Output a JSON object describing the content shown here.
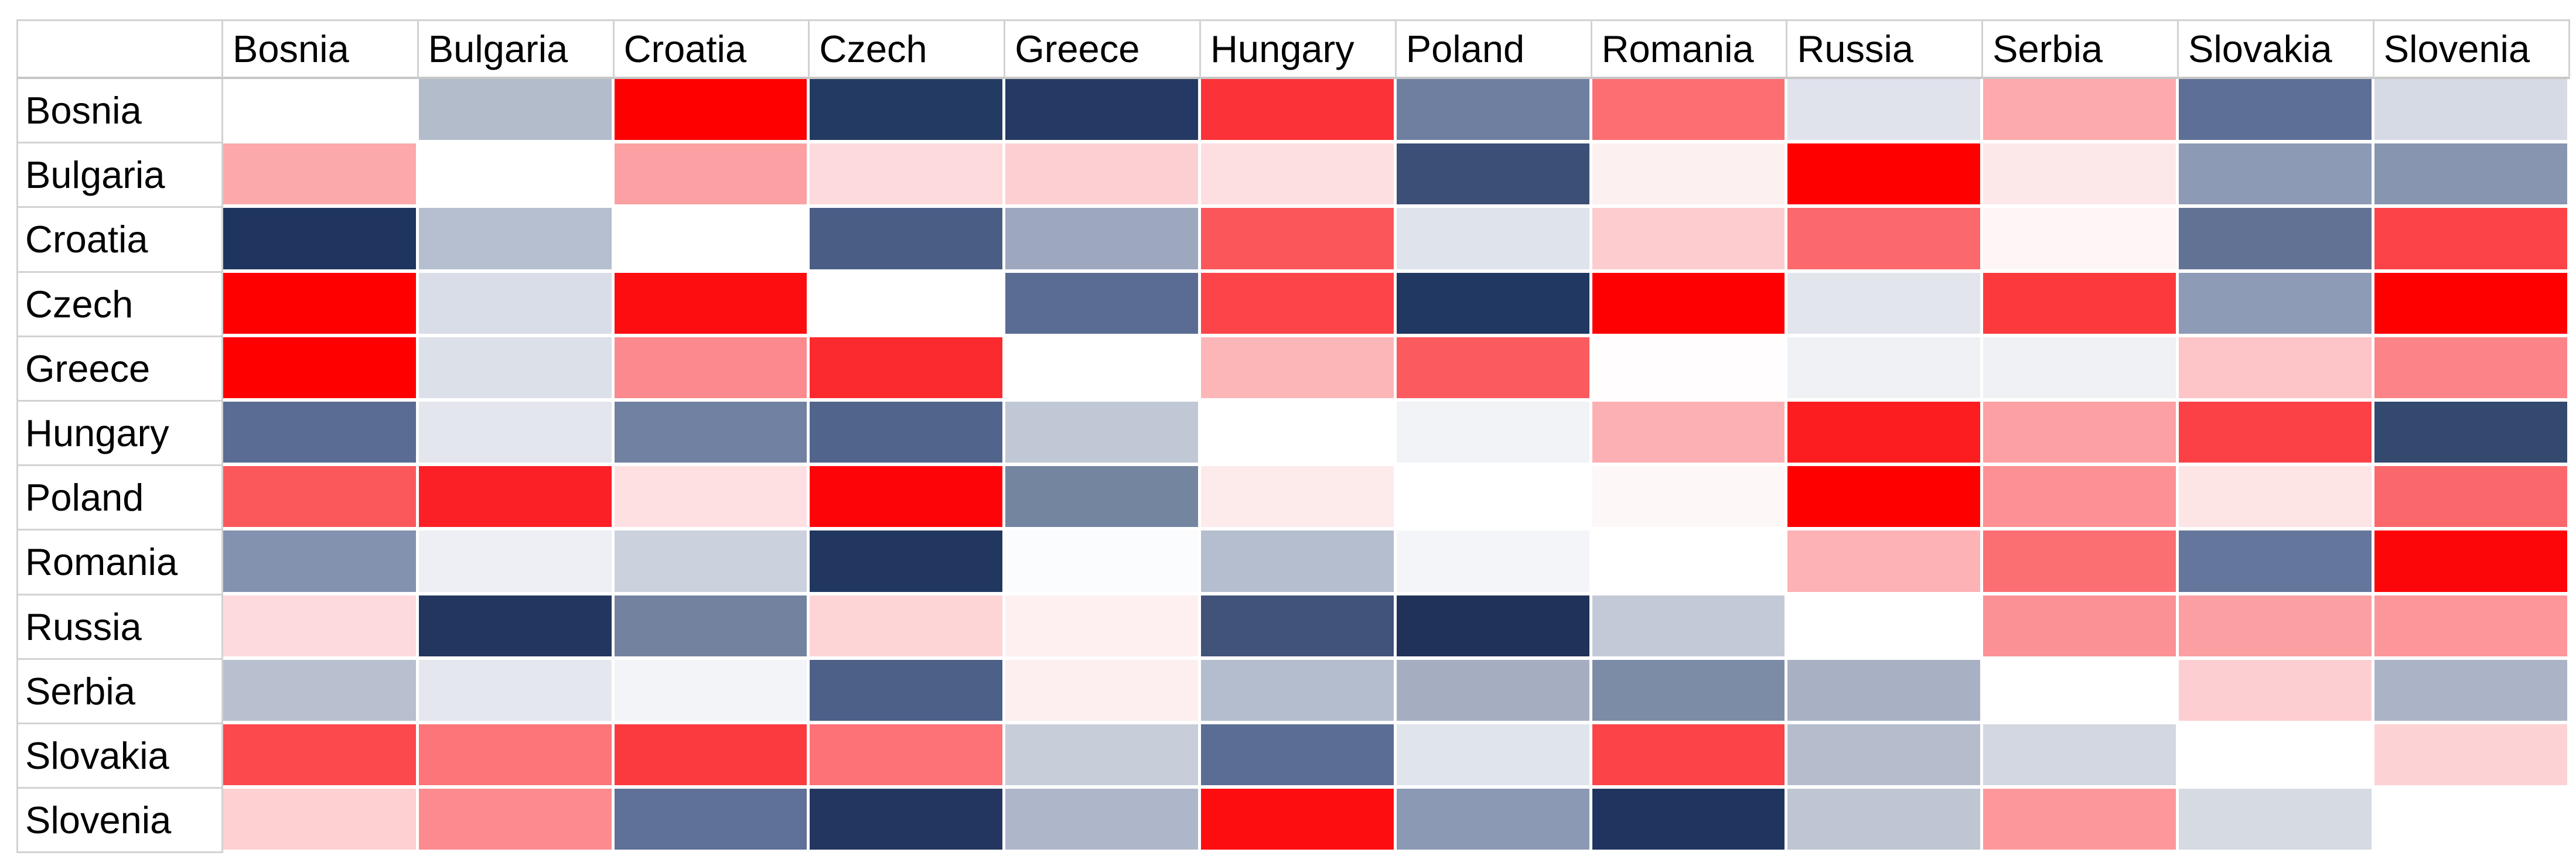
{
  "chart_data": {
    "type": "heatmap",
    "title": "",
    "description": "Country-by-country heatmap matrix (red = high positive, white = neutral, dark navy = low/negative); diagonal cells are blank white",
    "legend_position": "none",
    "grid": "white gridlines between cells",
    "col_labels": [
      "Bosnia",
      "Bulgaria",
      "Croatia",
      "Czech",
      "Greece",
      "Hungary",
      "Poland",
      "Romania",
      "Russia",
      "Serbia",
      "Slovakia",
      "Slovenia"
    ],
    "row_labels": [
      "Bosnia",
      "Bulgaria",
      "Croatia",
      "Czech",
      "Greece",
      "Hungary",
      "Poland",
      "Romania",
      "Russia",
      "Serbia",
      "Slovakia",
      "Slovenia"
    ],
    "color_scale": {
      "low": "#1F3560",
      "mid": "#FFFFFF",
      "high": "#FE0000"
    },
    "colors": [
      [
        "#FFFFFF",
        "#B3BCCB",
        "#FE0000",
        "#233A63",
        "#243A64",
        "#FB3338",
        "#6E7FA0",
        "#FC6E72",
        "#E0E3EC",
        "#FCAAAD",
        "#5D6F96",
        "#D6DAE4"
      ],
      [
        "#FCA9AB",
        "#FFFFFF",
        "#FCA0A3",
        "#FDDADC",
        "#FCCFD2",
        "#FDDFE1",
        "#3C4F77",
        "#FDF0F0",
        "#FE0000",
        "#FDE8E9",
        "#8D9AB5",
        "#8795B1"
      ],
      [
        "#1F3560",
        "#B6BFCF",
        "#FFFFFF",
        "#4A5D85",
        "#9DA8BF",
        "#FB575B",
        "#DFE3EB",
        "#FCCCCF",
        "#FB696D",
        "#FEF6F6",
        "#617295",
        "#FC4348"
      ],
      [
        "#FE0000",
        "#D9DDE7",
        "#FD0D10",
        "#FFFFFF",
        "#5A6C93",
        "#FC4449",
        "#213862",
        "#FE0002",
        "#E2E5EB",
        "#FC3A3E",
        "#8E9BB6",
        "#FE0000"
      ],
      [
        "#FE0000",
        "#DCE0E9",
        "#FC898D",
        "#FB2A2E",
        "#FFFFFF",
        "#FDB6B8",
        "#FB5A5E",
        "#FFFDFD",
        "#EFF1F5",
        "#EFF1F5",
        "#FDC5C7",
        "#FC8488"
      ],
      [
        "#5A6C93",
        "#E3E6ED",
        "#7181A1",
        "#51648B",
        "#C0C8D6",
        "#FFFFFF",
        "#F1F3F7",
        "#FDB0B3",
        "#FB1D20",
        "#FCA0A3",
        "#FC4146",
        "#33496E"
      ],
      [
        "#FB585C",
        "#FB2026",
        "#FEE0E2",
        "#FD0409",
        "#7485A0",
        "#FDEBEC",
        "#FFFFFF",
        "#FEF7F7",
        "#FE0000",
        "#FC9094",
        "#FDE4E5",
        "#FB686C"
      ],
      [
        "#8392AF",
        "#EDEFF4",
        "#CBD2DE",
        "#21375F",
        "#FBFCFD",
        "#B5BECE",
        "#F4F5F9",
        "#FFFFFF",
        "#FDB2B5",
        "#FB6F73",
        "#64769B",
        "#FD060A"
      ],
      [
        "#FDDADC",
        "#22365F",
        "#73839F",
        "#FDD5D7",
        "#FEF0F1",
        "#415379",
        "#203257",
        "#C3CAD7",
        "#FFFFFF",
        "#FC9195",
        "#FC9FA2",
        "#FC969A"
      ],
      [
        "#B8C0D0",
        "#E4E7ED",
        "#F2F4F7",
        "#4D6088",
        "#FDEEEF",
        "#B4BDCD",
        "#A5AEC1",
        "#7D8CA6",
        "#A8B1C4",
        "#FFFFFF",
        "#FDCED1",
        "#ABB4C7"
      ],
      [
        "#FB494E",
        "#FC7579",
        "#FB3A3F",
        "#FC7276",
        "#C7CEDA",
        "#5B6D94",
        "#E0E4EB",
        "#FB4348",
        "#B5BDCD",
        "#D2D7E1",
        "#FFFFFF",
        "#FDD2D4"
      ],
      [
        "#FDD0D2",
        "#FC8A8E",
        "#5F7198",
        "#22365F",
        "#AEB7C9",
        "#FD0D10",
        "#8B99B4",
        "#1F3560",
        "#BEC5D3",
        "#FC989C",
        "#D5DAE3",
        "#FFFFFF"
      ]
    ],
    "estimated_values": [
      [
        null,
        -0.34,
        1.0,
        -0.97,
        -0.97,
        0.8,
        -0.65,
        0.57,
        -0.15,
        0.33,
        -0.73,
        -0.18
      ],
      [
        0.33,
        null,
        0.37,
        0.14,
        0.19,
        0.12,
        -0.87,
        0.06,
        1.0,
        0.09,
        -0.52,
        -0.55
      ],
      [
        -1.0,
        -0.33,
        null,
        -0.81,
        -0.44,
        0.66,
        -0.16,
        0.2,
        0.59,
        0.04,
        -0.71,
        0.74
      ],
      [
        1.0,
        -0.17,
        0.95,
        null,
        -0.74,
        0.73,
        -0.98,
        1.0,
        -0.14,
        0.77,
        -0.52,
        1.0
      ],
      [
        1.0,
        -0.16,
        0.46,
        0.84,
        null,
        0.29,
        0.65,
        0.01,
        -0.07,
        -0.07,
        0.23,
        0.48
      ],
      [
        -0.74,
        -0.13,
        -0.63,
        -0.78,
        -0.28,
        null,
        -0.06,
        0.31,
        0.89,
        0.37,
        0.74,
        -0.9
      ],
      [
        0.65,
        0.87,
        0.12,
        0.98,
        -0.62,
        0.08,
        null,
        0.03,
        1.0,
        0.43,
        0.11,
        0.59
      ],
      [
        -0.56,
        -0.08,
        -0.24,
        -0.99,
        -0.02,
        -0.33,
        -0.05,
        null,
        0.3,
        0.56,
        -0.7,
        0.98
      ],
      [
        0.14,
        -0.99,
        -0.63,
        0.16,
        0.06,
        -0.85,
        -1.0,
        -0.27,
        null,
        0.43,
        0.37,
        0.41
      ],
      [
        -0.32,
        -0.13,
        -0.06,
        -0.8,
        0.07,
        -0.33,
        -0.4,
        -0.58,
        -0.38,
        null,
        0.19,
        -0.38
      ],
      [
        0.71,
        0.54,
        0.77,
        0.55,
        -0.25,
        -0.74,
        -0.15,
        0.74,
        -0.33,
        -0.21,
        null,
        0.18
      ],
      [
        0.18,
        0.45,
        -0.72,
        -0.99,
        -0.37,
        0.95,
        -0.53,
        -1.0,
        -0.29,
        0.4,
        -0.19,
        null
      ]
    ]
  }
}
